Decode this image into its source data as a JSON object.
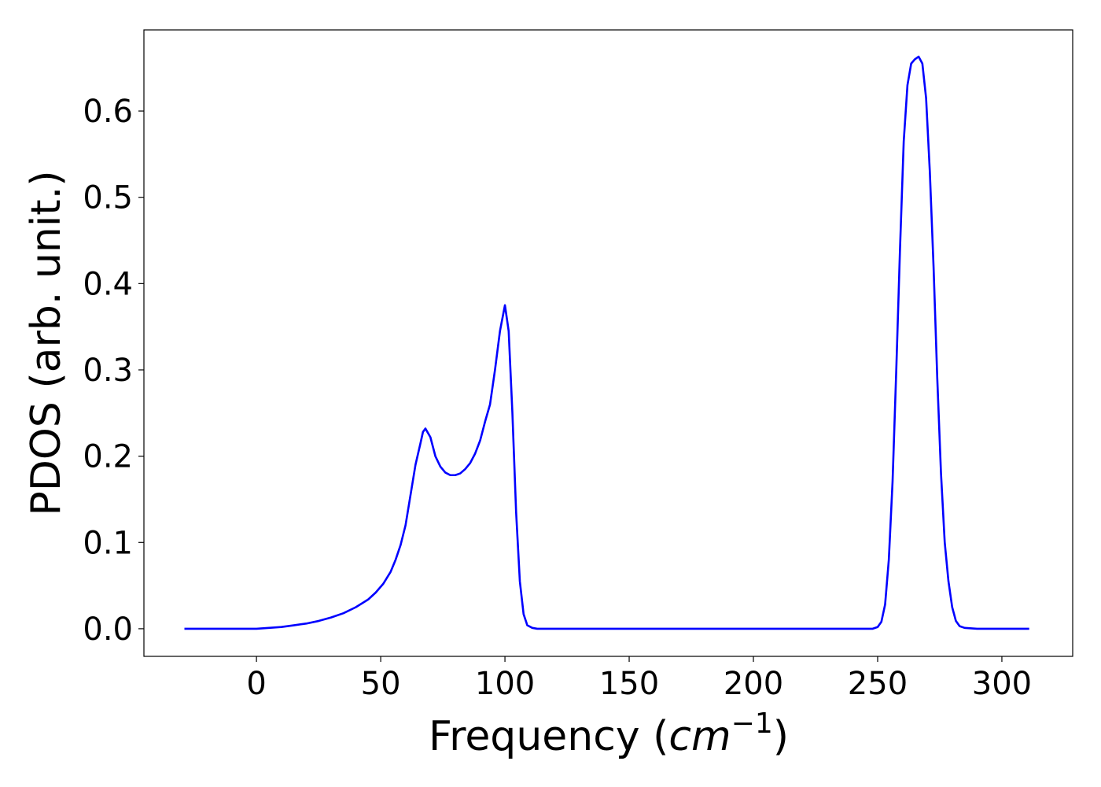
{
  "chart_data": {
    "type": "line",
    "xlabel": [
      "Frequency (",
      "cm",
      "−1",
      ")"
    ],
    "ylabel": "PDOS (arb. unit.)",
    "xlim": [
      -45.3,
      328.5
    ],
    "ylim": [
      -0.032,
      0.694
    ],
    "xticks": [
      0,
      50,
      100,
      150,
      200,
      250,
      300
    ],
    "yticks": [
      {
        "value": 0,
        "label": "0.0"
      },
      0.1,
      0.2,
      0.3,
      0.4,
      0.5,
      0.6
    ],
    "grid": false,
    "series": [
      {
        "color": "#0000ff",
        "x": [
          -29,
          0,
          5,
          10,
          15,
          20,
          25,
          30,
          35,
          40,
          45,
          48,
          51,
          54,
          56,
          58,
          60,
          62,
          64,
          66,
          67,
          68,
          70,
          72,
          74,
          76,
          78,
          80,
          82,
          84,
          86,
          88,
          90,
          92,
          94,
          96,
          98,
          100,
          101.5,
          103,
          104.5,
          106,
          107.5,
          109,
          111,
          113,
          248,
          250,
          251.5,
          253,
          254.5,
          256,
          257.5,
          259,
          260.5,
          262,
          263.5,
          265,
          266.5,
          268,
          269.5,
          271,
          272.5,
          274,
          275.5,
          277,
          278.5,
          280,
          281.5,
          283,
          285,
          290,
          311
        ],
        "values": [
          0,
          0,
          0.001,
          0.002,
          0.004,
          0.006,
          0.009,
          0.013,
          0.018,
          0.025,
          0.034,
          0.042,
          0.052,
          0.066,
          0.08,
          0.097,
          0.12,
          0.155,
          0.19,
          0.215,
          0.228,
          0.232,
          0.222,
          0.2,
          0.188,
          0.181,
          0.178,
          0.178,
          0.18,
          0.185,
          0.192,
          0.203,
          0.218,
          0.24,
          0.26,
          0.3,
          0.345,
          0.375,
          0.345,
          0.25,
          0.135,
          0.055,
          0.017,
          0.004,
          0.001,
          0,
          0,
          0.002,
          0.008,
          0.028,
          0.08,
          0.17,
          0.3,
          0.44,
          0.565,
          0.63,
          0.655,
          0.66,
          0.663,
          0.655,
          0.615,
          0.53,
          0.42,
          0.29,
          0.18,
          0.1,
          0.055,
          0.025,
          0.009,
          0.003,
          0.001,
          0,
          0
        ]
      }
    ]
  }
}
